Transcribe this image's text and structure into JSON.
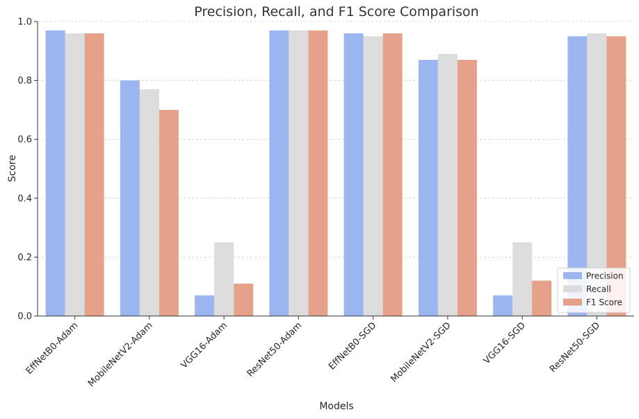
{
  "chart_data": {
    "type": "bar",
    "title": "Precision, Recall, and F1 Score Comparison",
    "xlabel": "Models",
    "ylabel": "Score",
    "ylim": [
      0,
      1.0
    ],
    "yticks": [
      "0.0",
      "0.2",
      "0.4",
      "0.6",
      "0.8",
      "1.0"
    ],
    "ytick_values": [
      0,
      0.2,
      0.4,
      0.6,
      0.8,
      1.0
    ],
    "grid": true,
    "legend_position": "bottom-right",
    "categories": [
      "EffNetB0-Adam",
      "MobileNetV2-Adam",
      "VGG16-Adam",
      "ResNet50-Adam",
      "EffNetB0-SGD",
      "MobileNetV2-SGD",
      "VGG16-SGD",
      "ResNet50-SGD"
    ],
    "series": [
      {
        "name": "Precision",
        "color": "#9bb5f0",
        "values": [
          0.97,
          0.8,
          0.07,
          0.97,
          0.96,
          0.87,
          0.07,
          0.95
        ]
      },
      {
        "name": "Recall",
        "color": "#dcdcdc",
        "values": [
          0.96,
          0.77,
          0.25,
          0.97,
          0.95,
          0.89,
          0.25,
          0.96
        ]
      },
      {
        "name": "F1 Score",
        "color": "#e6a18a",
        "values": [
          0.96,
          0.7,
          0.11,
          0.97,
          0.96,
          0.87,
          0.12,
          0.95
        ]
      }
    ]
  }
}
